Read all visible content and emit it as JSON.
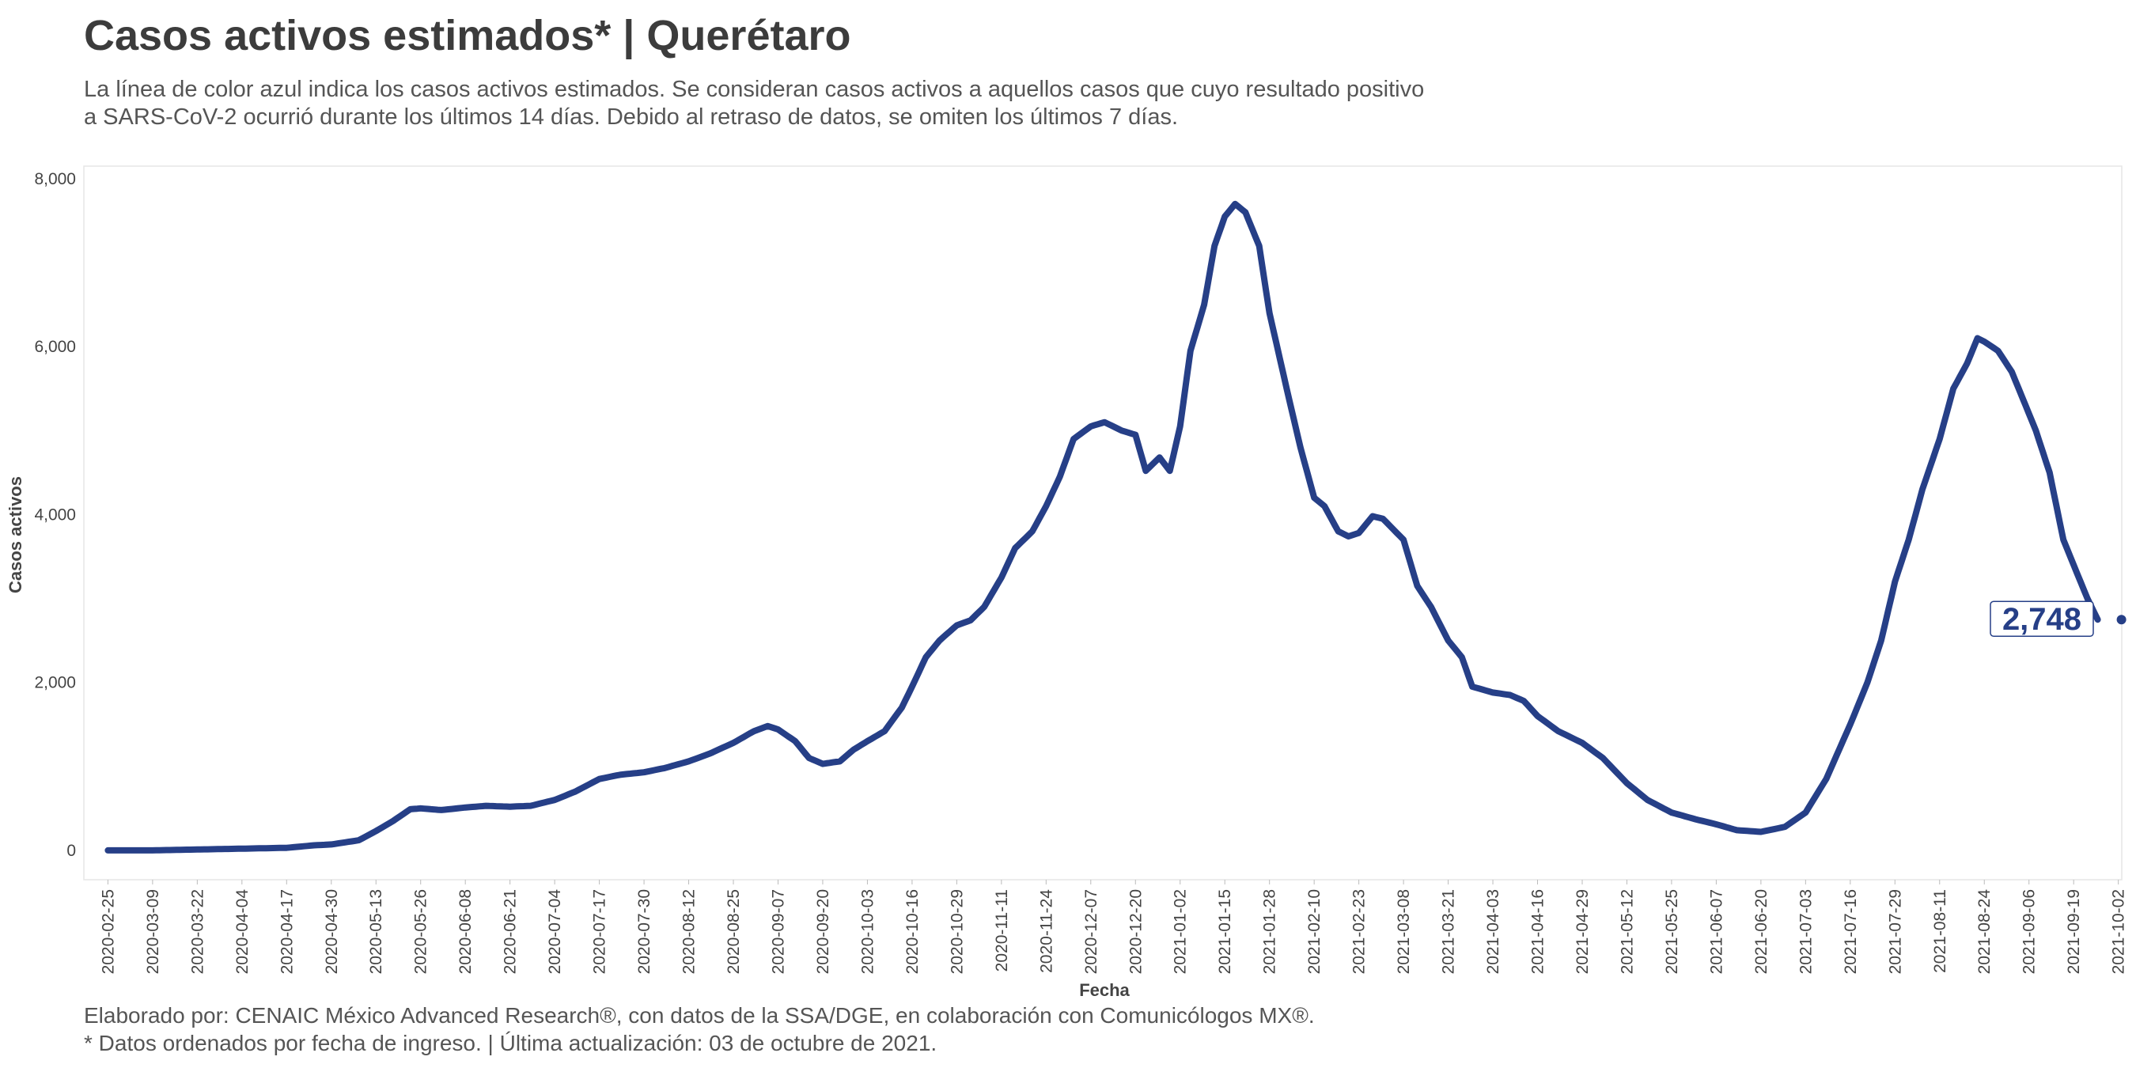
{
  "header": {
    "title": "Casos activos estimados* | Querétaro",
    "subtitle_line1": "La línea de color azul indica los casos activos estimados. Se consideran casos activos a aquellos casos que cuyo resultado positivo",
    "subtitle_line2": "a SARS-CoV-2 ocurrió durante los últimos 14 días. Debido al retraso de datos, se omiten los últimos 7 días."
  },
  "footer": {
    "line1": "Elaborado por: CENAIC México Advanced Research®, con datos de la SSA/DGE, en colaboración con Comunicólogos MX®.",
    "line2": "* Datos ordenados por fecha de ingreso. | Última actualización: 03 de octubre de 2021."
  },
  "colors": {
    "line": "#263f87",
    "label_border": "#263f87",
    "panel_border": "#e6e6e6"
  },
  "chart_data": {
    "type": "line",
    "xlabel": "Fecha",
    "ylabel": "Casos activos",
    "ylim": [
      -350,
      8150
    ],
    "xlim": [
      "2020-02-18",
      "2021-10-03"
    ],
    "x_ticks": [
      "2020-02-25",
      "2020-03-09",
      "2020-03-22",
      "2020-04-04",
      "2020-04-17",
      "2020-04-30",
      "2020-05-13",
      "2020-05-26",
      "2020-06-08",
      "2020-06-21",
      "2020-07-04",
      "2020-07-17",
      "2020-07-30",
      "2020-08-12",
      "2020-08-25",
      "2020-09-07",
      "2020-09-20",
      "2020-10-03",
      "2020-10-16",
      "2020-10-29",
      "2020-11-11",
      "2020-11-24",
      "2020-12-07",
      "2020-12-20",
      "2021-01-02",
      "2021-01-15",
      "2021-01-28",
      "2021-02-10",
      "2021-02-23",
      "2021-03-08",
      "2021-03-21",
      "2021-04-03",
      "2021-04-16",
      "2021-04-29",
      "2021-05-12",
      "2021-05-25",
      "2021-06-07",
      "2021-06-20",
      "2021-07-03",
      "2021-07-16",
      "2021-07-29",
      "2021-08-11",
      "2021-08-24",
      "2021-09-06",
      "2021-09-19",
      "2021-10-02"
    ],
    "y_ticks": [
      0,
      2000,
      4000,
      6000,
      8000
    ],
    "y_tick_labels": [
      "0",
      "2,000",
      "4,000",
      "6,000",
      "8,000"
    ],
    "grid": false,
    "last_value_label": "2,748",
    "series": [
      {
        "points": [
          [
            "2020-02-25",
            0
          ],
          [
            "2020-03-09",
            0
          ],
          [
            "2020-03-22",
            10
          ],
          [
            "2020-04-04",
            20
          ],
          [
            "2020-04-17",
            30
          ],
          [
            "2020-04-25",
            60
          ],
          [
            "2020-04-30",
            70
          ],
          [
            "2020-05-08",
            120
          ],
          [
            "2020-05-13",
            230
          ],
          [
            "2020-05-18",
            350
          ],
          [
            "2020-05-23",
            490
          ],
          [
            "2020-05-26",
            500
          ],
          [
            "2020-06-01",
            480
          ],
          [
            "2020-06-08",
            510
          ],
          [
            "2020-06-14",
            530
          ],
          [
            "2020-06-21",
            520
          ],
          [
            "2020-06-27",
            530
          ],
          [
            "2020-07-04",
            600
          ],
          [
            "2020-07-10",
            700
          ],
          [
            "2020-07-17",
            850
          ],
          [
            "2020-07-23",
            900
          ],
          [
            "2020-07-30",
            930
          ],
          [
            "2020-08-05",
            980
          ],
          [
            "2020-08-12",
            1060
          ],
          [
            "2020-08-18",
            1150
          ],
          [
            "2020-08-25",
            1280
          ],
          [
            "2020-08-31",
            1420
          ],
          [
            "2020-09-04",
            1480
          ],
          [
            "2020-09-07",
            1440
          ],
          [
            "2020-09-12",
            1300
          ],
          [
            "2020-09-16",
            1100
          ],
          [
            "2020-09-20",
            1030
          ],
          [
            "2020-09-25",
            1060
          ],
          [
            "2020-09-29",
            1200
          ],
          [
            "2020-10-03",
            1300
          ],
          [
            "2020-10-08",
            1420
          ],
          [
            "2020-10-13",
            1700
          ],
          [
            "2020-10-16",
            1950
          ],
          [
            "2020-10-20",
            2300
          ],
          [
            "2020-10-24",
            2500
          ],
          [
            "2020-10-29",
            2680
          ],
          [
            "2020-11-02",
            2740
          ],
          [
            "2020-11-06",
            2900
          ],
          [
            "2020-11-11",
            3250
          ],
          [
            "2020-11-15",
            3600
          ],
          [
            "2020-11-20",
            3800
          ],
          [
            "2020-11-24",
            4100
          ],
          [
            "2020-11-28",
            4450
          ],
          [
            "2020-12-02",
            4900
          ],
          [
            "2020-12-07",
            5050
          ],
          [
            "2020-12-11",
            5100
          ],
          [
            "2020-12-16",
            5000
          ],
          [
            "2020-12-20",
            4950
          ],
          [
            "2020-12-23",
            4520
          ],
          [
            "2020-12-27",
            4680
          ],
          [
            "2020-12-30",
            4520
          ],
          [
            "2021-01-02",
            5050
          ],
          [
            "2021-01-05",
            5950
          ],
          [
            "2021-01-09",
            6500
          ],
          [
            "2021-01-12",
            7200
          ],
          [
            "2021-01-15",
            7550
          ],
          [
            "2021-01-18",
            7700
          ],
          [
            "2021-01-21",
            7600
          ],
          [
            "2021-01-25",
            7200
          ],
          [
            "2021-01-28",
            6400
          ],
          [
            "2021-02-02",
            5500
          ],
          [
            "2021-02-06",
            4800
          ],
          [
            "2021-02-10",
            4200
          ],
          [
            "2021-02-13",
            4100
          ],
          [
            "2021-02-17",
            3800
          ],
          [
            "2021-02-20",
            3740
          ],
          [
            "2021-02-23",
            3780
          ],
          [
            "2021-02-27",
            3980
          ],
          [
            "2021-03-02",
            3950
          ],
          [
            "2021-03-08",
            3700
          ],
          [
            "2021-03-12",
            3150
          ],
          [
            "2021-03-16",
            2900
          ],
          [
            "2021-03-21",
            2500
          ],
          [
            "2021-03-25",
            2300
          ],
          [
            "2021-03-28",
            1950
          ],
          [
            "2021-04-03",
            1880
          ],
          [
            "2021-04-08",
            1850
          ],
          [
            "2021-04-12",
            1780
          ],
          [
            "2021-04-16",
            1600
          ],
          [
            "2021-04-22",
            1420
          ],
          [
            "2021-04-29",
            1280
          ],
          [
            "2021-05-05",
            1100
          ],
          [
            "2021-05-12",
            800
          ],
          [
            "2021-05-18",
            600
          ],
          [
            "2021-05-25",
            450
          ],
          [
            "2021-06-01",
            370
          ],
          [
            "2021-06-07",
            310
          ],
          [
            "2021-06-13",
            240
          ],
          [
            "2021-06-20",
            220
          ],
          [
            "2021-06-27",
            280
          ],
          [
            "2021-07-03",
            450
          ],
          [
            "2021-07-09",
            850
          ],
          [
            "2021-07-16",
            1500
          ],
          [
            "2021-07-21",
            2000
          ],
          [
            "2021-07-25",
            2500
          ],
          [
            "2021-07-29",
            3200
          ],
          [
            "2021-08-02",
            3700
          ],
          [
            "2021-08-06",
            4300
          ],
          [
            "2021-08-11",
            4900
          ],
          [
            "2021-08-15",
            5500
          ],
          [
            "2021-08-19",
            5800
          ],
          [
            "2021-08-22",
            6100
          ],
          [
            "2021-08-24",
            6060
          ],
          [
            "2021-08-28",
            5950
          ],
          [
            "2021-09-01",
            5700
          ],
          [
            "2021-09-04",
            5400
          ],
          [
            "2021-09-08",
            5000
          ],
          [
            "2021-09-12",
            4500
          ],
          [
            "2021-09-16",
            3700
          ],
          [
            "2021-09-19",
            3400
          ],
          [
            "2021-09-23",
            3000
          ],
          [
            "2021-09-26",
            2748
          ]
        ]
      }
    ]
  }
}
